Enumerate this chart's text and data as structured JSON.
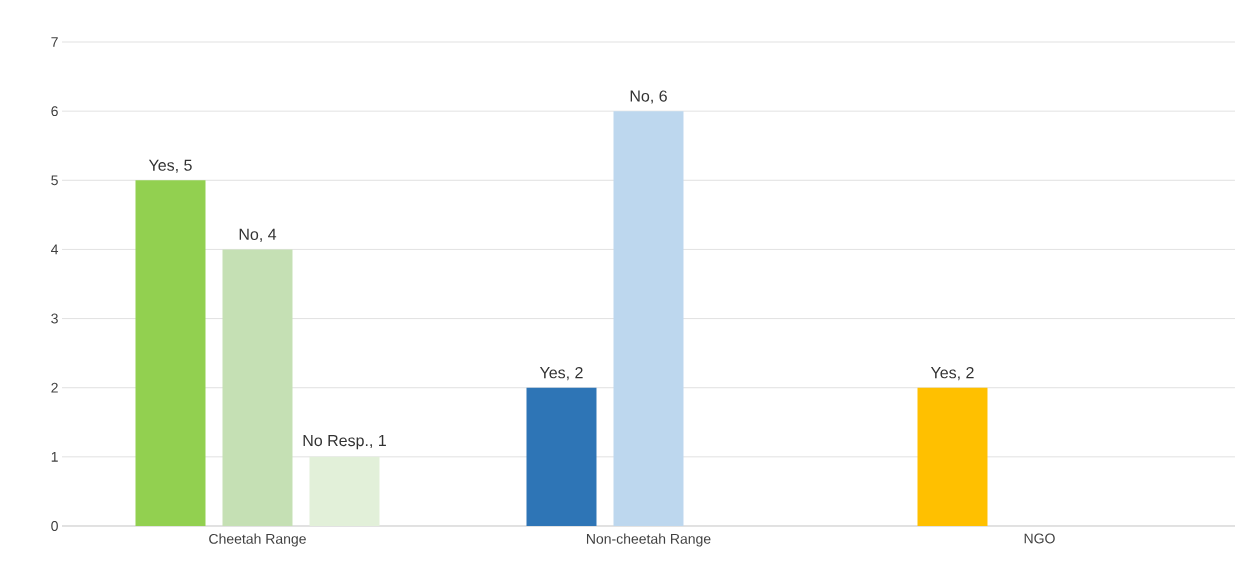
{
  "chart_data": {
    "type": "bar",
    "categories": [
      "Cheetah Range",
      "Non-cheetah Range",
      "NGO"
    ],
    "series": [
      {
        "colors": [
          "#92d050",
          "#2e75b6",
          "#ffc000"
        ],
        "values": [
          5,
          2,
          2
        ],
        "value_labels": [
          "Yes, 5",
          "Yes, 2",
          "Yes, 2"
        ]
      },
      {
        "colors": [
          "#c5e0b4",
          "#bdd7ee",
          null
        ],
        "values": [
          4,
          6,
          null
        ],
        "value_labels": [
          "No, 4",
          "No, 6",
          null
        ]
      },
      {
        "colors": [
          "#e2f0d9",
          null,
          null
        ],
        "values": [
          1,
          null,
          null
        ],
        "value_labels": [
          "No Resp., 1",
          null,
          null
        ]
      }
    ],
    "ylim": [
      0,
      7
    ],
    "yticks": [
      0,
      1,
      2,
      3,
      4,
      5,
      6,
      7
    ],
    "grid": "y"
  }
}
